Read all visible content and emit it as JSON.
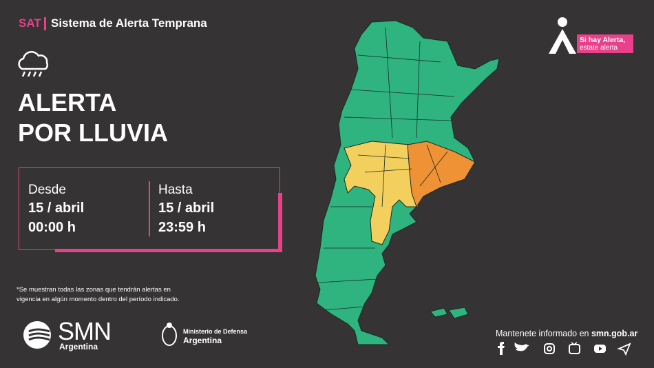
{
  "header": {
    "brand": "SAT",
    "system": "Sistema de Alerta Temprana"
  },
  "title": {
    "line1": "ALERTA",
    "line2": "POR LLUVIA"
  },
  "period": {
    "from": {
      "label": "Desde",
      "date": "15 / abril",
      "time": "00:00 h"
    },
    "to": {
      "label": "Hasta",
      "date": "15 / abril",
      "time": "23:59 h"
    }
  },
  "note": {
    "line1": "*Se muestran todas las zonas que tendrán alertas en",
    "line2": "vigencia en algún momento dentro del período indicado."
  },
  "badge": {
    "line1": "Si hay Alerta,",
    "line2": "estate alerta"
  },
  "logos": {
    "smn": "SMN",
    "smn_country": "Argentina",
    "ministry": "Ministerio de Defensa",
    "ministry_country": "Argentina"
  },
  "footer": {
    "text": "Mantenete informado en ",
    "link": "smn.gob.ar"
  }
}
